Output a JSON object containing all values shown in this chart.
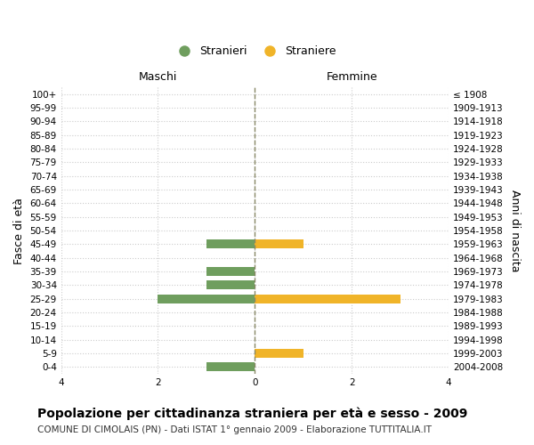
{
  "age_groups": [
    "0-4",
    "5-9",
    "10-14",
    "15-19",
    "20-24",
    "25-29",
    "30-34",
    "35-39",
    "40-44",
    "45-49",
    "50-54",
    "55-59",
    "60-64",
    "65-69",
    "70-74",
    "75-79",
    "80-84",
    "85-89",
    "90-94",
    "95-99",
    "100+"
  ],
  "birth_years": [
    "2004-2008",
    "1999-2003",
    "1994-1998",
    "1989-1993",
    "1984-1988",
    "1979-1983",
    "1974-1978",
    "1969-1973",
    "1964-1968",
    "1959-1963",
    "1954-1958",
    "1949-1953",
    "1944-1948",
    "1939-1943",
    "1934-1938",
    "1929-1933",
    "1924-1928",
    "1919-1923",
    "1914-1918",
    "1909-1913",
    "≤ 1908"
  ],
  "males": [
    -1,
    0,
    0,
    0,
    0,
    -2,
    -1,
    -1,
    0,
    -1,
    0,
    0,
    0,
    0,
    0,
    0,
    0,
    0,
    0,
    0,
    0
  ],
  "females": [
    0,
    1,
    0,
    0,
    0,
    3,
    0,
    0,
    0,
    1,
    0,
    0,
    0,
    0,
    0,
    0,
    0,
    0,
    0,
    0,
    0
  ],
  "male_color": "#6f9e5e",
  "female_color": "#f0b429",
  "male_label": "Stranieri",
  "female_label": "Straniere",
  "xlabel_left": "Maschi",
  "xlabel_right": "Femmine",
  "ylabel_left": "Fasce di età",
  "ylabel_right": "Anni di nascita",
  "xlim": [
    -4,
    4
  ],
  "xticks": [
    -4,
    -2,
    0,
    2,
    4
  ],
  "xticklabels": [
    "4",
    "2",
    "0",
    "2",
    "4"
  ],
  "title": "Popolazione per cittadinanza straniera per età e sesso - 2009",
  "subtitle": "COMUNE DI CIMOLAIS (PN) - Dati ISTAT 1° gennaio 2009 - Elaborazione TUTTITALIA.IT",
  "bg_color": "#ffffff",
  "grid_color": "#cccccc",
  "bar_height": 0.65,
  "center_line_color": "#888866",
  "title_fontsize": 10,
  "subtitle_fontsize": 7.5,
  "legend_fontsize": 9,
  "tick_fontsize": 7.5,
  "label_fontsize": 9
}
